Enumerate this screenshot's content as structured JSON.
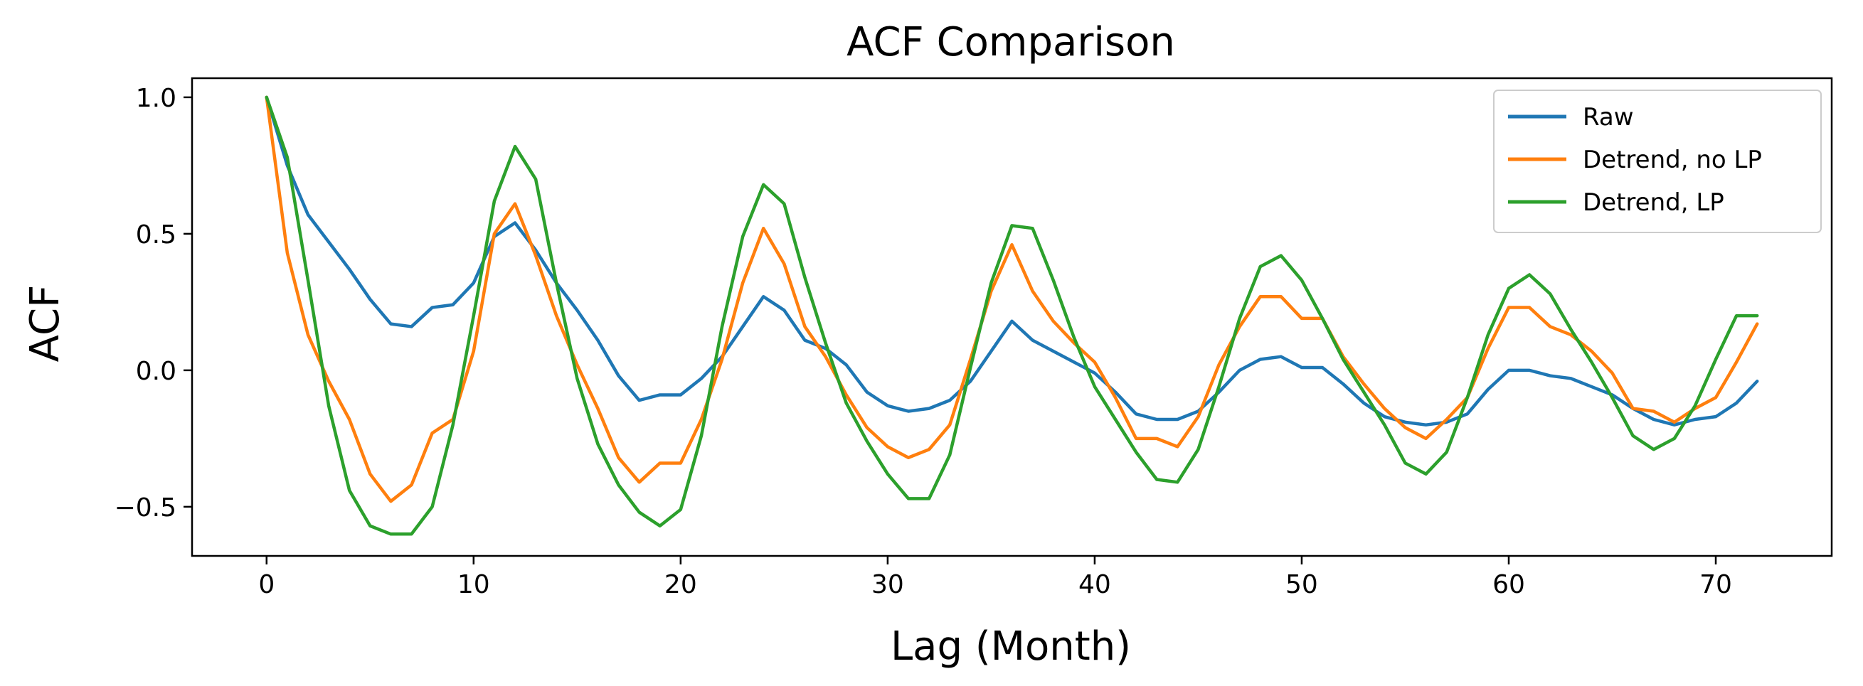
{
  "chart_data": {
    "type": "line",
    "title": "ACF Comparison",
    "xlabel": "Lag (Month)",
    "ylabel": "ACF",
    "xlim": [
      -3.6,
      75.6
    ],
    "ylim": [
      -0.68,
      1.07
    ],
    "xticks": [
      0,
      10,
      20,
      30,
      40,
      50,
      60,
      70
    ],
    "yticks": [
      -0.5,
      0.0,
      0.5,
      1.0
    ],
    "xtick_labels": [
      "0",
      "10",
      "20",
      "30",
      "40",
      "50",
      "60",
      "70"
    ],
    "ytick_labels": [
      "−0.5",
      "0.0",
      "0.5",
      "1.0"
    ],
    "grid": false,
    "legend_position": "top-right",
    "series": [
      {
        "name": "Raw",
        "color": "#1f77b4",
        "values": [
          1.0,
          0.75,
          0.57,
          0.47,
          0.37,
          0.26,
          0.17,
          0.16,
          0.23,
          0.24,
          0.32,
          0.49,
          0.54,
          0.44,
          0.32,
          0.22,
          0.11,
          -0.02,
          -0.11,
          -0.09,
          -0.09,
          -0.03,
          0.05,
          0.16,
          0.27,
          0.22,
          0.11,
          0.08,
          0.02,
          -0.08,
          -0.13,
          -0.15,
          -0.14,
          -0.11,
          -0.04,
          0.07,
          0.18,
          0.11,
          0.07,
          0.03,
          -0.01,
          -0.08,
          -0.16,
          -0.18,
          -0.18,
          -0.15,
          -0.08,
          0.0,
          0.04,
          0.05,
          0.01,
          0.01,
          -0.05,
          -0.12,
          -0.17,
          -0.19,
          -0.2,
          -0.19,
          -0.16,
          -0.07,
          -0.0,
          -0.0,
          -0.02,
          -0.03,
          -0.06,
          -0.09,
          -0.14,
          -0.18,
          -0.2,
          -0.18,
          -0.17,
          -0.12,
          -0.04
        ]
      },
      {
        "name": "Detrend, no LP",
        "color": "#ff7f0e",
        "values": [
          1.0,
          0.43,
          0.13,
          -0.04,
          -0.18,
          -0.38,
          -0.48,
          -0.42,
          -0.23,
          -0.18,
          0.07,
          0.5,
          0.61,
          0.42,
          0.2,
          0.02,
          -0.14,
          -0.32,
          -0.41,
          -0.34,
          -0.34,
          -0.18,
          0.04,
          0.32,
          0.52,
          0.39,
          0.16,
          0.05,
          -0.09,
          -0.21,
          -0.28,
          -0.32,
          -0.29,
          -0.2,
          0.04,
          0.29,
          0.46,
          0.29,
          0.18,
          0.1,
          0.03,
          -0.1,
          -0.25,
          -0.25,
          -0.28,
          -0.17,
          0.02,
          0.16,
          0.27,
          0.27,
          0.19,
          0.19,
          0.05,
          -0.05,
          -0.14,
          -0.21,
          -0.25,
          -0.18,
          -0.1,
          0.08,
          0.23,
          0.23,
          0.16,
          0.13,
          0.07,
          -0.01,
          -0.14,
          -0.15,
          -0.19,
          -0.14,
          -0.1,
          0.03,
          0.17
        ]
      },
      {
        "name": "Detrend, LP",
        "color": "#2ca02c",
        "values": [
          1.0,
          0.78,
          0.33,
          -0.13,
          -0.44,
          -0.57,
          -0.6,
          -0.6,
          -0.5,
          -0.2,
          0.2,
          0.62,
          0.82,
          0.7,
          0.32,
          -0.03,
          -0.27,
          -0.42,
          -0.52,
          -0.57,
          -0.51,
          -0.24,
          0.16,
          0.49,
          0.68,
          0.61,
          0.34,
          0.1,
          -0.12,
          -0.26,
          -0.38,
          -0.47,
          -0.47,
          -0.31,
          0.01,
          0.32,
          0.53,
          0.52,
          0.33,
          0.12,
          -0.06,
          -0.18,
          -0.3,
          -0.4,
          -0.41,
          -0.29,
          -0.06,
          0.19,
          0.38,
          0.42,
          0.33,
          0.19,
          0.04,
          -0.08,
          -0.2,
          -0.34,
          -0.38,
          -0.3,
          -0.1,
          0.13,
          0.3,
          0.35,
          0.28,
          0.15,
          0.03,
          -0.1,
          -0.24,
          -0.29,
          -0.25,
          -0.13,
          0.04,
          0.2,
          0.2
        ]
      }
    ]
  }
}
